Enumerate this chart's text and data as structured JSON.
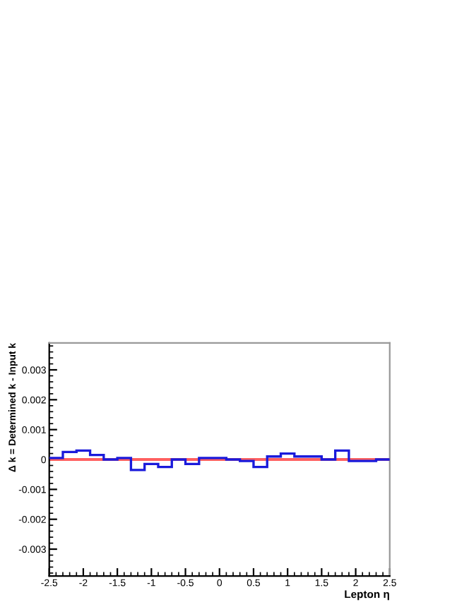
{
  "chart_data": {
    "type": "histogram",
    "xlabel": "Lepton η",
    "ylabel": "Δ k = Determined k - Input k",
    "bins": [
      -2.5,
      -2.3,
      -2.1,
      -1.9,
      -1.7,
      -1.5,
      -1.3,
      -1.1,
      -0.9,
      -0.7,
      -0.5,
      -0.3,
      -0.1,
      0.1,
      0.3,
      0.5,
      0.7,
      0.9,
      1.1,
      1.3,
      1.5,
      1.7,
      1.9,
      2.1,
      2.3,
      2.5
    ],
    "values": [
      5e-05,
      0.00025,
      0.0003,
      0.00015,
      0.0,
      5e-05,
      -0.00035,
      -0.00015,
      -0.00025,
      0.0,
      -0.00015,
      5e-05,
      5e-05,
      0.0,
      -5e-05,
      -0.00025,
      0.0001,
      0.0002,
      0.0001,
      0.0001,
      0.0,
      0.0003,
      -5e-05,
      -5e-05,
      0.0
    ],
    "color": "#1a1adb",
    "xlim": [
      -2.5,
      2.5
    ],
    "ylim": [
      -0.0039,
      0.0039
    ],
    "xticks": [
      -2.5,
      -2,
      -1.5,
      -1,
      -0.5,
      0,
      0.5,
      1,
      1.5,
      2,
      2.5
    ],
    "yticks": [
      -0.003,
      -0.002,
      -0.001,
      0,
      0.001,
      0.002,
      0.003
    ],
    "ref_lines": [
      {
        "axis": "y",
        "value": 0,
        "color": "#ff6060"
      }
    ],
    "grid": false,
    "legend": false
  }
}
